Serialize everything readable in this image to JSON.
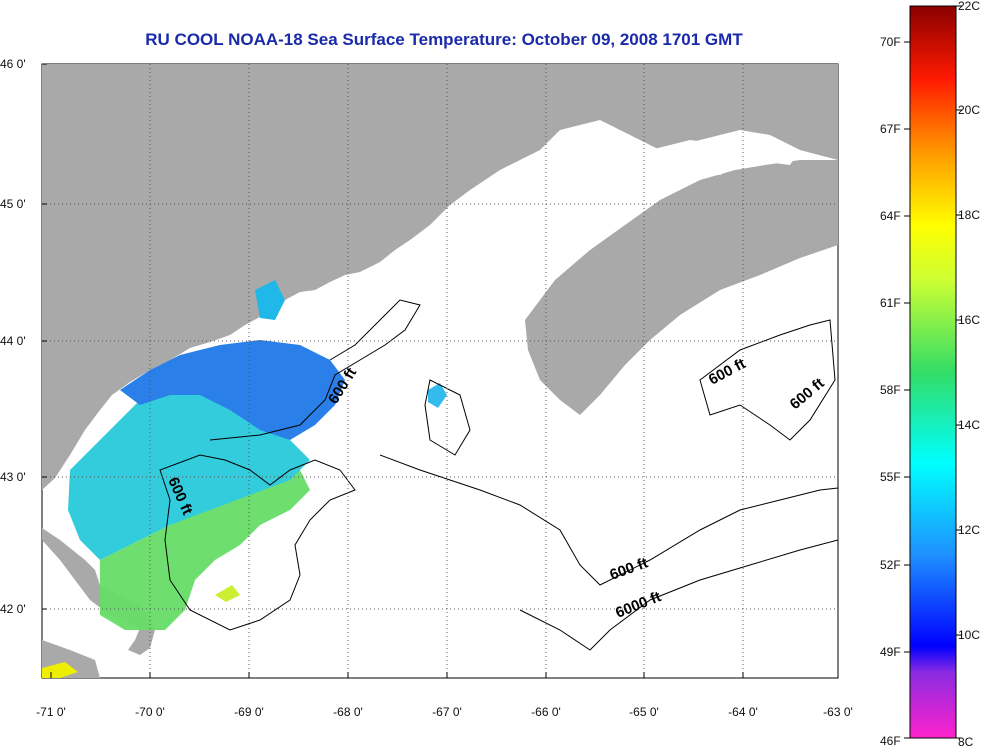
{
  "title": "RU COOL  NOAA-18  Sea Surface Temperature:  October 09, 2008 1701 GMT",
  "lat_labels": [
    "46 0'",
    "45 0'",
    "44 0'",
    "43 0'",
    "42 0'"
  ],
  "lon_labels": [
    "-71 0'",
    "-70 0'",
    "-69 0'",
    "-68 0'",
    "-67 0'",
    "-66 0'",
    "-65 0'",
    "-64 0'",
    "-63 0'"
  ],
  "contour_labels": [
    {
      "text": "600 ft",
      "rotate": 66
    },
    {
      "text": "600 ft",
      "rotate": -58
    },
    {
      "text": "600 ft",
      "rotate": -28
    },
    {
      "text": "600 ft",
      "rotate": -40
    },
    {
      "text": "600 ft",
      "rotate": -20
    },
    {
      "text": "6000 ft",
      "rotate": -22
    }
  ],
  "colorbar": {
    "fahrenheit": [
      "70F",
      "67F",
      "64F",
      "61F",
      "58F",
      "55F",
      "52F",
      "49F",
      "46F"
    ],
    "celsius": [
      "22C",
      "20C",
      "18C",
      "16C",
      "14C",
      "12C",
      "10C",
      "8C"
    ]
  },
  "colors": {
    "land": "#a9a9a9",
    "water_no_data": "#ffffff",
    "title": "#1a2aa8",
    "gridline": "#555555"
  }
}
